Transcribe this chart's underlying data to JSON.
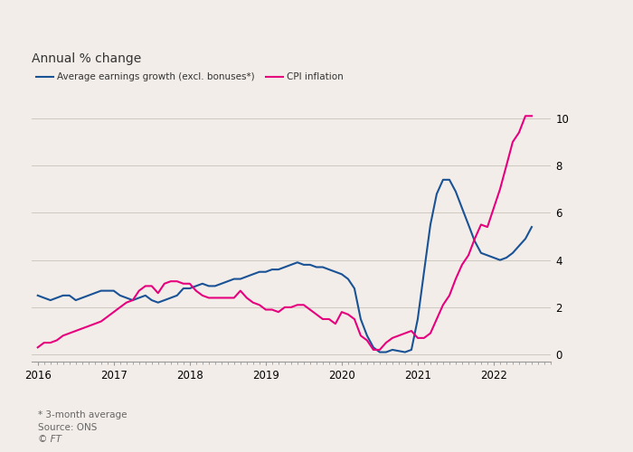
{
  "title": "Annual % change",
  "legend": [
    {
      "label": "Average earnings growth (excl. bonuses*)",
      "color": "#1a5296"
    },
    {
      "label": "CPI inflation",
      "color": "#e6007e"
    }
  ],
  "footnotes": [
    "* 3-month average",
    "Source: ONS",
    "© FT"
  ],
  "ylim": [
    -0.3,
    10.8
  ],
  "yticks": [
    0,
    2,
    4,
    6,
    8,
    10
  ],
  "background_color": "#f2ede8",
  "plot_bg_color": "#f2ede8",
  "wages": {
    "x": [
      2016.0,
      2016.083,
      2016.167,
      2016.25,
      2016.333,
      2016.417,
      2016.5,
      2016.583,
      2016.667,
      2016.75,
      2016.833,
      2016.917,
      2017.0,
      2017.083,
      2017.167,
      2017.25,
      2017.333,
      2017.417,
      2017.5,
      2017.583,
      2017.667,
      2017.75,
      2017.833,
      2017.917,
      2018.0,
      2018.083,
      2018.167,
      2018.25,
      2018.333,
      2018.417,
      2018.5,
      2018.583,
      2018.667,
      2018.75,
      2018.833,
      2018.917,
      2019.0,
      2019.083,
      2019.167,
      2019.25,
      2019.333,
      2019.417,
      2019.5,
      2019.583,
      2019.667,
      2019.75,
      2019.833,
      2019.917,
      2020.0,
      2020.083,
      2020.167,
      2020.25,
      2020.333,
      2020.417,
      2020.5,
      2020.583,
      2020.667,
      2020.75,
      2020.833,
      2020.917,
      2021.0,
      2021.083,
      2021.167,
      2021.25,
      2021.333,
      2021.417,
      2021.5,
      2021.583,
      2021.667,
      2021.75,
      2021.833,
      2021.917,
      2022.0,
      2022.083,
      2022.167,
      2022.25,
      2022.333,
      2022.417,
      2022.5
    ],
    "y": [
      2.5,
      2.4,
      2.3,
      2.4,
      2.5,
      2.5,
      2.3,
      2.4,
      2.5,
      2.6,
      2.7,
      2.7,
      2.7,
      2.5,
      2.4,
      2.3,
      2.4,
      2.5,
      2.3,
      2.2,
      2.3,
      2.4,
      2.5,
      2.8,
      2.8,
      2.9,
      3.0,
      2.9,
      2.9,
      3.0,
      3.1,
      3.2,
      3.2,
      3.3,
      3.4,
      3.5,
      3.5,
      3.6,
      3.6,
      3.7,
      3.8,
      3.9,
      3.8,
      3.8,
      3.7,
      3.7,
      3.6,
      3.5,
      3.4,
      3.2,
      2.8,
      1.5,
      0.8,
      0.3,
      0.1,
      0.1,
      0.2,
      0.15,
      0.1,
      0.2,
      1.5,
      3.5,
      5.5,
      6.8,
      7.4,
      7.4,
      6.9,
      6.2,
      5.5,
      4.8,
      4.3,
      4.2,
      4.1,
      4.0,
      4.1,
      4.3,
      4.6,
      4.9,
      5.4
    ]
  },
  "cpi": {
    "x": [
      2016.0,
      2016.083,
      2016.167,
      2016.25,
      2016.333,
      2016.417,
      2016.5,
      2016.583,
      2016.667,
      2016.75,
      2016.833,
      2016.917,
      2017.0,
      2017.083,
      2017.167,
      2017.25,
      2017.333,
      2017.417,
      2017.5,
      2017.583,
      2017.667,
      2017.75,
      2017.833,
      2017.917,
      2018.0,
      2018.083,
      2018.167,
      2018.25,
      2018.333,
      2018.417,
      2018.5,
      2018.583,
      2018.667,
      2018.75,
      2018.833,
      2018.917,
      2019.0,
      2019.083,
      2019.167,
      2019.25,
      2019.333,
      2019.417,
      2019.5,
      2019.583,
      2019.667,
      2019.75,
      2019.833,
      2019.917,
      2020.0,
      2020.083,
      2020.167,
      2020.25,
      2020.333,
      2020.417,
      2020.5,
      2020.583,
      2020.667,
      2020.75,
      2020.833,
      2020.917,
      2021.0,
      2021.083,
      2021.167,
      2021.25,
      2021.333,
      2021.417,
      2021.5,
      2021.583,
      2021.667,
      2021.75,
      2021.833,
      2021.917,
      2022.0,
      2022.083,
      2022.167,
      2022.25,
      2022.333,
      2022.417,
      2022.5
    ],
    "y": [
      0.3,
      0.5,
      0.5,
      0.6,
      0.8,
      0.9,
      1.0,
      1.1,
      1.2,
      1.3,
      1.4,
      1.6,
      1.8,
      2.0,
      2.2,
      2.3,
      2.7,
      2.9,
      2.9,
      2.6,
      3.0,
      3.1,
      3.1,
      3.0,
      3.0,
      2.7,
      2.5,
      2.4,
      2.4,
      2.4,
      2.4,
      2.4,
      2.7,
      2.4,
      2.2,
      2.1,
      1.9,
      1.9,
      1.8,
      2.0,
      2.0,
      2.1,
      2.1,
      1.9,
      1.7,
      1.5,
      1.5,
      1.3,
      1.8,
      1.7,
      1.5,
      0.8,
      0.6,
      0.2,
      0.2,
      0.5,
      0.7,
      0.8,
      0.9,
      1.0,
      0.7,
      0.7,
      0.9,
      1.5,
      2.1,
      2.5,
      3.2,
      3.8,
      4.2,
      4.9,
      5.5,
      5.4,
      6.2,
      7.0,
      8.0,
      9.0,
      9.4,
      10.1,
      10.1
    ]
  },
  "wages_color": "#1a5296",
  "cpi_color": "#e6007e",
  "line_width": 1.5,
  "tick_label_fontsize": 8.5,
  "title_fontsize": 10,
  "footnote_fontsize": 7.5,
  "x_year_labels": [
    2016,
    2017,
    2018,
    2019,
    2020,
    2021,
    2022
  ],
  "xlim": [
    2015.92,
    2022.75
  ],
  "grid_color": "#c8c2ba",
  "spine_color": "#999999",
  "text_color": "#333333",
  "footnote_color": "#666666"
}
